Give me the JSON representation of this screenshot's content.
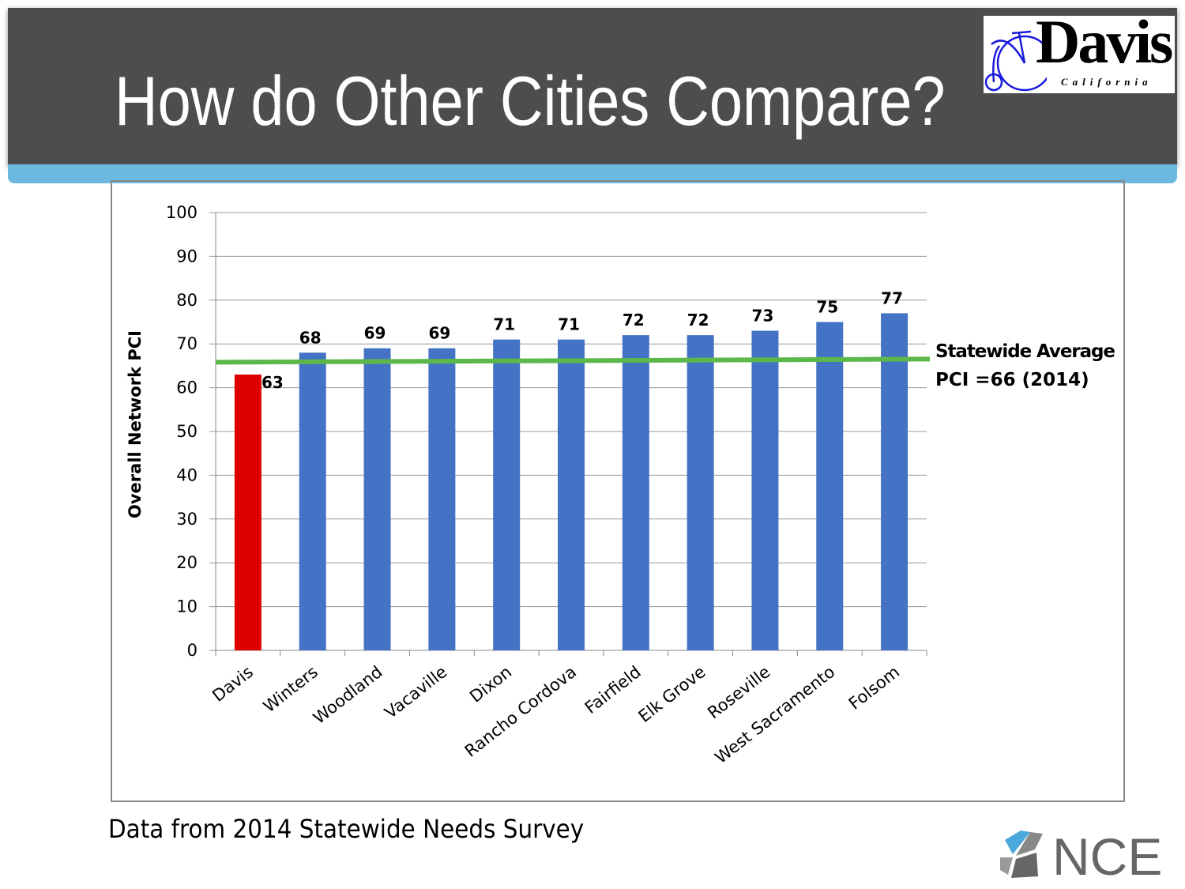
{
  "slide": {
    "title": "How do Other Cities Compare?",
    "source": "Data from 2014 Statewide Needs Survey",
    "logo_text": "Davis",
    "logo_sub": "California",
    "nce_text": "NCE"
  },
  "chart_data": {
    "type": "bar",
    "title": "",
    "ylabel": "Overall Network PCI",
    "xlabel": "",
    "ylim": [
      0,
      100
    ],
    "yticks": [
      0,
      10,
      20,
      30,
      40,
      50,
      60,
      70,
      80,
      90,
      100
    ],
    "grid": true,
    "categories": [
      "Davis",
      "Winters",
      "Woodland",
      "Vacaville",
      "Dixon",
      "Rancho Cordova",
      "Fairfield",
      "Elk Grove",
      "Roseville",
      "West Sacramento",
      "Folsom"
    ],
    "values": [
      63,
      68,
      69,
      69,
      71,
      71,
      72,
      72,
      73,
      75,
      77
    ],
    "colors": [
      "#dd0000",
      "#4472c4",
      "#4472c4",
      "#4472c4",
      "#4472c4",
      "#4472c4",
      "#4472c4",
      "#4472c4",
      "#4472c4",
      "#4472c4",
      "#4472c4"
    ],
    "reference_line": {
      "value": 66,
      "color": "#5cb84a",
      "label_line1": "Statewide Average",
      "label_line2": "PCI =66 (2014)"
    }
  }
}
